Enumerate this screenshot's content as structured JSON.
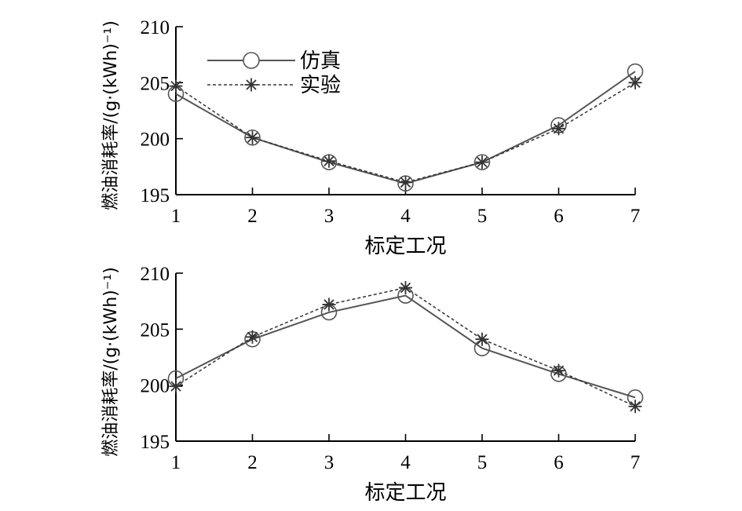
{
  "chart_data": [
    {
      "type": "line",
      "x": [
        1,
        2,
        3,
        4,
        5,
        6,
        7
      ],
      "xlabel": "标定工况",
      "ylabel": "燃油消耗率/(g·(kWh)⁻¹)",
      "xticks": [
        "1",
        "2",
        "3",
        "4",
        "5",
        "6",
        "7"
      ],
      "yticks": [
        "195",
        "200",
        "205",
        "210"
      ],
      "xlim": [
        1,
        7
      ],
      "ylim": [
        195,
        210
      ],
      "legend": "top-left",
      "series": [
        {
          "name": "仿真",
          "values": [
            204.0,
            200.1,
            197.9,
            196.0,
            197.9,
            201.2,
            206.0
          ],
          "color": "#555555",
          "marker": "circle",
          "line": "solid"
        },
        {
          "name": "实验",
          "values": [
            204.7,
            200.1,
            198.0,
            196.1,
            197.9,
            200.9,
            205.0
          ],
          "color": "#333333",
          "marker": "star",
          "line": "dashed"
        }
      ]
    },
    {
      "type": "line",
      "x": [
        1,
        2,
        3,
        4,
        5,
        6,
        7
      ],
      "xlabel": "标定工况",
      "ylabel": "燃油消耗率/(g·(kWh)⁻¹)",
      "xticks": [
        "1",
        "2",
        "3",
        "4",
        "5",
        "6",
        "7"
      ],
      "yticks": [
        "195",
        "200",
        "205",
        "210"
      ],
      "xlim": [
        1,
        7
      ],
      "ylim": [
        195,
        210
      ],
      "series": [
        {
          "name": "仿真",
          "values": [
            200.6,
            204.1,
            206.5,
            208.0,
            203.3,
            201.0,
            198.9
          ],
          "color": "#555555",
          "marker": "circle",
          "line": "solid"
        },
        {
          "name": "实验",
          "values": [
            199.9,
            204.3,
            207.2,
            208.7,
            204.1,
            201.3,
            198.1
          ],
          "color": "#333333",
          "marker": "star",
          "line": "dashed"
        }
      ]
    }
  ]
}
